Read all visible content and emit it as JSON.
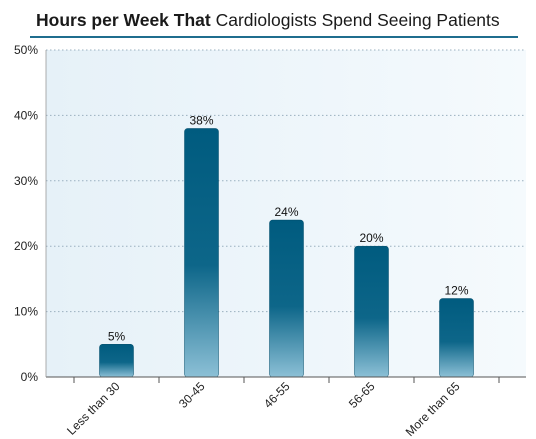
{
  "chart_data": {
    "type": "bar",
    "title_bold": "Hours per Week That",
    "title_rest": " Cardiologists Spend Seeing Patients",
    "categories": [
      "Less than 30",
      "30-45",
      "46-55",
      "56-65",
      "More than 65"
    ],
    "values": [
      5,
      38,
      24,
      20,
      12
    ],
    "data_labels": [
      "5%",
      "38%",
      "24%",
      "20%",
      "12%"
    ],
    "ytick_labels": [
      "0%",
      "10%",
      "20%",
      "30%",
      "40%",
      "50%"
    ],
    "yticks": [
      0,
      10,
      20,
      30,
      40,
      50
    ],
    "ylim": [
      0,
      50
    ],
    "grid": true,
    "bar_color": "#005b7f",
    "plot_bg": "#eef6fb"
  }
}
